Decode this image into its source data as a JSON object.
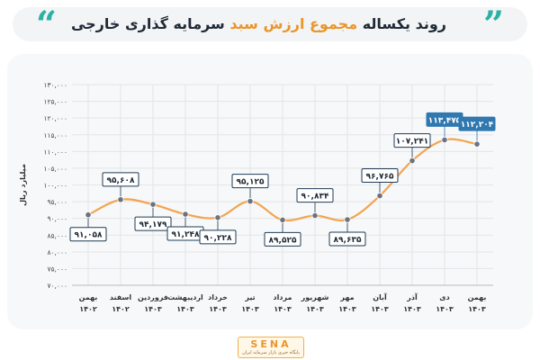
{
  "header": {
    "title_part1": "روند یکساله",
    "title_part2": "مجموع ارزش سبد",
    "title_part3": "سرمایه گذاری خارجی",
    "quote_left": "“",
    "quote_right": "”"
  },
  "colors": {
    "line": "#f3a450",
    "point": "#6b7280",
    "label_border": "#1f3b57",
    "highlight_box": "#2f78b0",
    "title_highlight": "#e8962c",
    "quote": "#2bb2a4"
  },
  "chart_data": {
    "type": "line",
    "title": "",
    "xlabel": "",
    "ylabel": "میلیارد ریال",
    "ylim": [
      70000,
      130000
    ],
    "yticks": [
      "۷۰,۰۰۰",
      "۷۵,۰۰۰",
      "۸۰,۰۰۰",
      "۸۵,۰۰۰",
      "۹۰,۰۰۰",
      "۹۵,۰۰۰",
      "۱۰۰,۰۰۰",
      "۱۰۵,۰۰۰",
      "۱۱۰,۰۰۰",
      "۱۱۵,۰۰۰",
      "۱۲۰,۰۰۰",
      "۱۲۵,۰۰۰",
      "۱۳۰,۰۰۰"
    ],
    "ytick_values": [
      70000,
      75000,
      80000,
      85000,
      90000,
      95000,
      100000,
      105000,
      110000,
      115000,
      120000,
      125000,
      130000
    ],
    "categories": [
      "بهمن",
      "اسفند",
      "فروردین",
      "اردیبهشت",
      "خرداد",
      "تیر",
      "مرداد",
      "شهریور",
      "مهر",
      "آبان",
      "آذر",
      "دی",
      "بهمن"
    ],
    "years": [
      "۱۴۰۲",
      "۱۴۰۲",
      "۱۴۰۳",
      "۱۴۰۳",
      "۱۴۰۳",
      "۱۴۰۳",
      "۱۴۰۳",
      "۱۴۰۳",
      "۱۴۰۳",
      "۱۴۰۳",
      "۱۴۰۳",
      "۱۴۰۳",
      "۱۴۰۳"
    ],
    "values": [
      91058,
      95608,
      94179,
      91248,
      90228,
      95125,
      89525,
      90834,
      89635,
      96765,
      107241,
      113475,
      112204
    ],
    "value_labels": [
      "۹۱,۰۵۸",
      "۹۵,۶۰۸",
      "۹۴,۱۷۹",
      "۹۱,۲۴۸",
      "۹۰,۲۲۸",
      "۹۵,۱۲۵",
      "۸۹,۵۲۵",
      "۹۰,۸۳۴",
      "۸۹,۶۳۵",
      "۹۶,۷۶۵",
      "۱۰۷,۲۴۱",
      "۱۱۳,۴۷۵",
      "۱۱۲,۲۰۴"
    ],
    "label_position": [
      "below",
      "above",
      "below",
      "below",
      "below",
      "above",
      "below",
      "above",
      "below",
      "above",
      "above",
      "above",
      "above"
    ],
    "highlighted": [
      false,
      false,
      false,
      false,
      false,
      false,
      false,
      false,
      false,
      false,
      false,
      true,
      true
    ],
    "grid": true
  },
  "footer": {
    "logo_text": "SENA",
    "logo_sub": "پایگاه خبری بازار سرمایه ایران"
  }
}
